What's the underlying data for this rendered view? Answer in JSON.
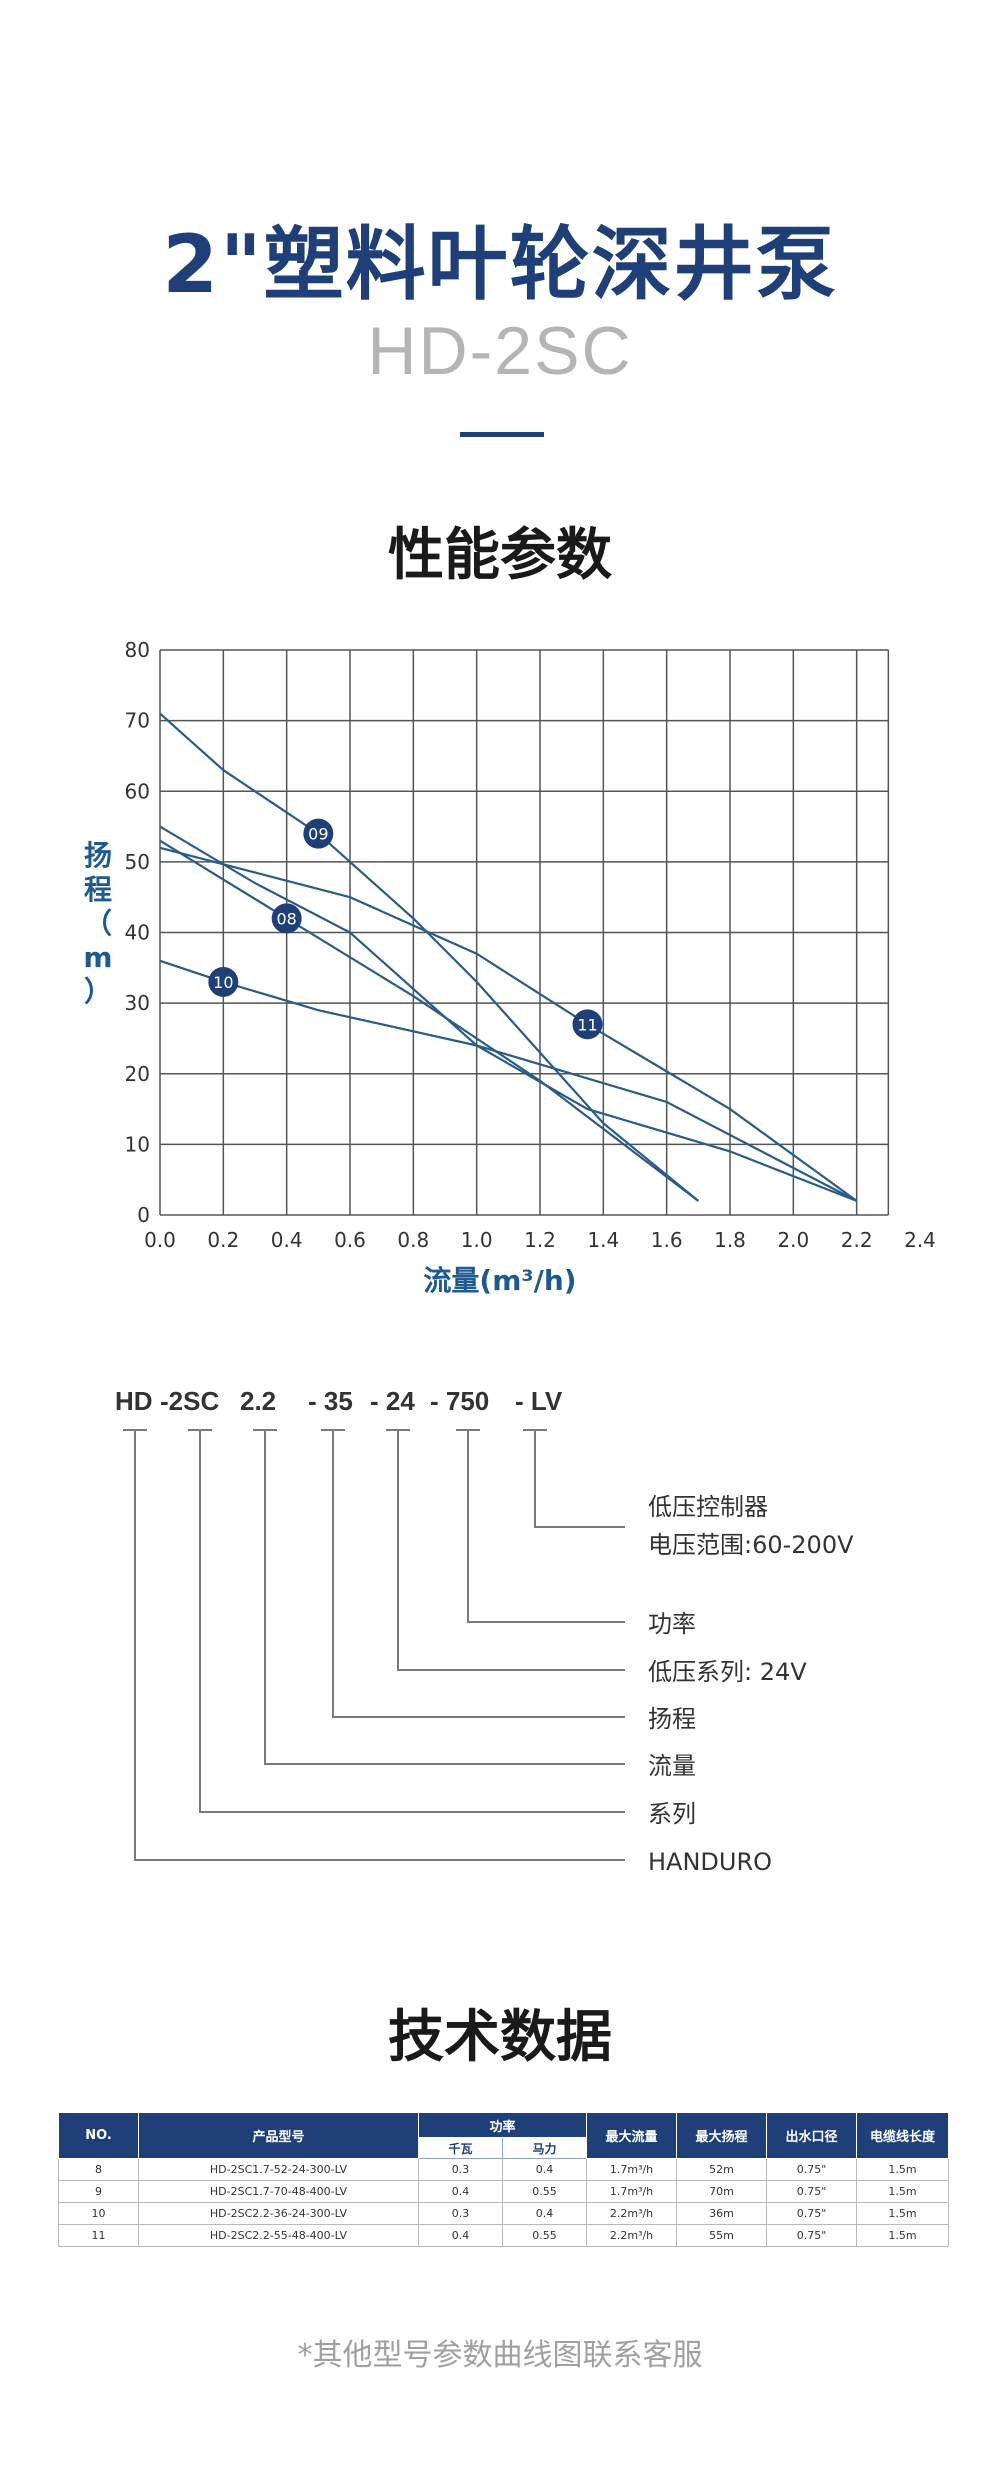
{
  "header": {
    "title": "2\"塑料叶轮深井泵",
    "model": "HD-2SC"
  },
  "performance": {
    "heading": "性能参数"
  },
  "chart_data": {
    "type": "line",
    "xlabel": "流量(m³/h)",
    "ylabel": "扬程（m）",
    "xlim": [
      0,
      2.4
    ],
    "ylim": [
      0,
      80
    ],
    "x_ticks": [
      "0.0",
      "0.2",
      "0.4",
      "0.6",
      "0.8",
      "1.0",
      "1.2",
      "1.4",
      "1.6",
      "1.8",
      "2.0",
      "2.2",
      "2.4"
    ],
    "y_ticks": [
      "0",
      "10",
      "20",
      "30",
      "40",
      "50",
      "60",
      "70",
      "80"
    ],
    "grid": true,
    "line_color": "#2a5c8a",
    "series": [
      {
        "name": "08",
        "label_at": [
          0.4,
          42
        ],
        "points": [
          [
            0,
            53
          ],
          [
            0.4,
            42
          ],
          [
            0.8,
            31
          ],
          [
            1.2,
            19
          ],
          [
            1.7,
            2
          ]
        ]
      },
      {
        "name": "09",
        "label_at": [
          0.5,
          54
        ],
        "points": [
          [
            0,
            71
          ],
          [
            0.2,
            63
          ],
          [
            0.5,
            54
          ],
          [
            0.8,
            42
          ],
          [
            1.0,
            33
          ],
          [
            1.4,
            13
          ],
          [
            1.7,
            2
          ]
        ]
      },
      {
        "name": "10",
        "label_at": [
          0.2,
          33
        ],
        "points": [
          [
            0,
            36
          ],
          [
            0.2,
            33
          ],
          [
            0.5,
            29
          ],
          [
            1.0,
            24
          ],
          [
            1.6,
            16
          ],
          [
            2.2,
            2
          ]
        ]
      },
      {
        "name": "11",
        "label_at": [
          1.35,
          27
        ],
        "points": [
          [
            0,
            55
          ],
          [
            0.3,
            47
          ],
          [
            0.6,
            40
          ],
          [
            1.0,
            24
          ],
          [
            1.35,
            15
          ],
          [
            1.8,
            9
          ],
          [
            2.2,
            2
          ]
        ]
      },
      {
        "name": "",
        "points": [
          [
            0,
            52
          ],
          [
            0.6,
            45
          ],
          [
            1.0,
            37
          ],
          [
            1.35,
            27
          ],
          [
            1.8,
            15
          ],
          [
            2.2,
            2
          ]
        ]
      }
    ]
  },
  "model_code": {
    "segments": [
      "HD",
      "-2SC",
      "2.2",
      "- 35",
      "- 24",
      "- 750",
      "- LV"
    ],
    "legend": [
      {
        "line1": "低压控制器",
        "line2": "电压范围:60-200V"
      },
      {
        "line1": "功率"
      },
      {
        "line1": "低压系列: 24V"
      },
      {
        "line1": "扬程"
      },
      {
        "line1": "流量"
      },
      {
        "line1": "系列"
      },
      {
        "line1": "HANDURO"
      }
    ]
  },
  "specs": {
    "heading": "技术数据",
    "headers": {
      "no": "NO.",
      "model": "产品型号",
      "power": "功率",
      "power_kw": "千瓦",
      "power_hp": "马力",
      "max_flow": "最大流量",
      "max_head": "最大扬程",
      "outlet": "出水口径",
      "cable": "电缆线长度"
    },
    "rows": [
      {
        "no": "8",
        "model": "HD-2SC1.7-52-24-300-LV",
        "kw": "0.3",
        "hp": "0.4",
        "flow": "1.7m³/h",
        "head": "52m",
        "outlet": "0.75\"",
        "cable": "1.5m"
      },
      {
        "no": "9",
        "model": "HD-2SC1.7-70-48-400-LV",
        "kw": "0.4",
        "hp": "0.55",
        "flow": "1.7m³/h",
        "head": "70m",
        "outlet": "0.75\"",
        "cable": "1.5m"
      },
      {
        "no": "10",
        "model": "HD-2SC2.2-36-24-300-LV",
        "kw": "0.3",
        "hp": "0.4",
        "flow": "2.2m³/h",
        "head": "36m",
        "outlet": "0.75\"",
        "cable": "1.5m"
      },
      {
        "no": "11",
        "model": "HD-2SC2.2-55-48-400-LV",
        "kw": "0.4",
        "hp": "0.55",
        "flow": "2.2m³/h",
        "head": "55m",
        "outlet": "0.75\"",
        "cable": "1.5m"
      }
    ]
  },
  "footnote": "*其他型号参数曲线图联系客服"
}
